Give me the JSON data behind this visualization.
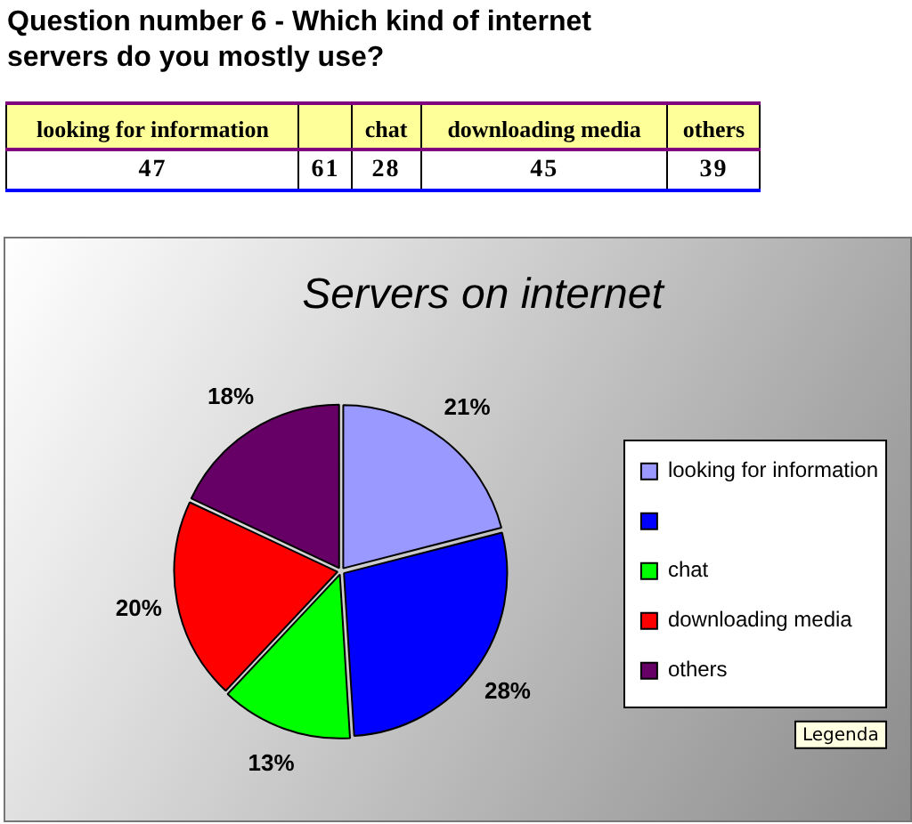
{
  "chart_data": [
    {
      "type": "other",
      "title": "Question number 6 - Which kind of internet servers do you mostly use?",
      "categories": [
        "looking for information",
        null,
        "chat",
        "downloading media",
        "others"
      ],
      "values": [
        47,
        61,
        28,
        45,
        39
      ],
      "data_labels": true
    },
    {
      "type": "pie",
      "title": "Servers on internet",
      "categories": [
        "looking for information",
        null,
        "chat",
        "downloading media",
        "others"
      ],
      "values": [
        21,
        28,
        13,
        20,
        18
      ],
      "colors": [
        "#9999ff",
        "#0000ff",
        "#00ff00",
        "#ff0000",
        "#660066"
      ],
      "value_labels": [
        "21%",
        "28%",
        "13%",
        "20%",
        "18%"
      ],
      "legend": "right",
      "annotations": [
        "Legenda"
      ]
    }
  ]
}
